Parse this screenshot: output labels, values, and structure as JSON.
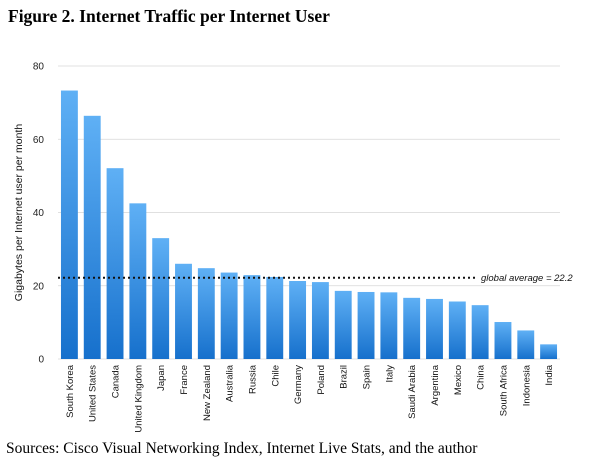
{
  "figure_title": "Figure 2. Internet Traffic per Internet User",
  "source_text": "Sources: Cisco Visual Networking Index, Internet Live Stats, and the author",
  "colors": {
    "bar_top": "#5fb0f5",
    "bar_bottom": "#1670cc",
    "grid": "#d6d6d6"
  },
  "chart_data": {
    "type": "bar",
    "title": "",
    "xlabel": "",
    "ylabel": "Gigabytes per Internet user per month",
    "ylim": [
      0,
      80
    ],
    "yticks": [
      0,
      20,
      40,
      60,
      80
    ],
    "grid": true,
    "categories": [
      "South Korea",
      "United States",
      "Canada",
      "United Kingdom",
      "Japan",
      "France",
      "New Zealand",
      "Australia",
      "Russia",
      "Chile",
      "Germany",
      "Poland",
      "Brazil",
      "Spain",
      "Italy",
      "Saudi Arabia",
      "Argentina",
      "Mexico",
      "China",
      "South Africa",
      "Indonesia",
      "India"
    ],
    "values": [
      73.3,
      66.4,
      52.1,
      42.5,
      33.0,
      26.0,
      24.8,
      23.6,
      22.9,
      22.4,
      21.3,
      21.0,
      18.6,
      18.3,
      18.2,
      16.7,
      16.4,
      15.7,
      14.7,
      10.1,
      7.8,
      4.0
    ],
    "reference_line": {
      "value": 22.2,
      "label": "global average = 22.2"
    }
  }
}
